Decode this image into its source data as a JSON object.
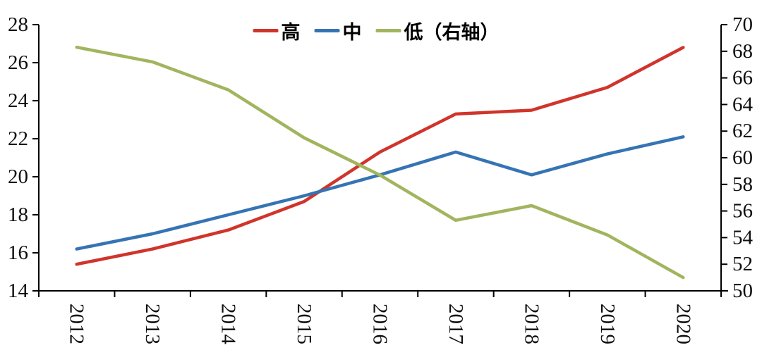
{
  "chart_data": {
    "type": "line",
    "title": "",
    "categories": [
      "2012",
      "2013",
      "2014",
      "2015",
      "2016",
      "2017",
      "2018",
      "2019",
      "2020"
    ],
    "series": [
      {
        "name": "高",
        "axis": "left",
        "color": "#d0342a",
        "values": [
          15.4,
          16.2,
          17.2,
          18.7,
          21.3,
          23.3,
          23.5,
          24.7,
          26.8
        ]
      },
      {
        "name": "中",
        "axis": "left",
        "color": "#3574b4",
        "values": [
          16.2,
          17.0,
          18.0,
          19.0,
          20.1,
          21.3,
          20.1,
          21.2,
          22.1
        ]
      },
      {
        "name": "低（右轴）",
        "axis": "right",
        "color": "#a1b55e",
        "values": [
          68.3,
          67.2,
          65.1,
          61.5,
          58.7,
          55.3,
          56.4,
          54.2,
          51.0
        ]
      }
    ],
    "left_axis": {
      "min": 14,
      "max": 28,
      "tick_step": 2,
      "ticks": [
        14,
        16,
        18,
        20,
        22,
        24,
        26,
        28
      ]
    },
    "right_axis": {
      "min": 50,
      "max": 70,
      "tick_step": 2,
      "ticks": [
        50,
        52,
        54,
        56,
        58,
        60,
        62,
        64,
        66,
        68,
        70
      ]
    },
    "x_axis": {
      "label_rotation_deg": 90
    },
    "legend_position": "top-center",
    "grid": false,
    "axis_color": "#000000",
    "label_color": "#0f0f0f"
  }
}
